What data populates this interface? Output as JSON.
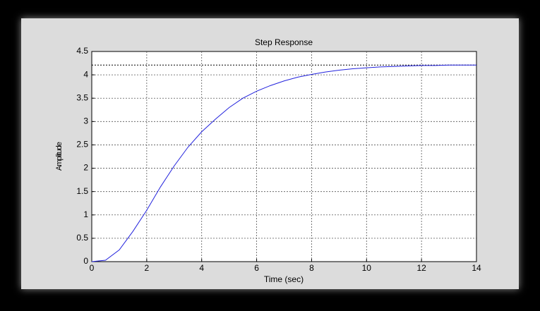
{
  "chart_data": {
    "type": "line",
    "title": "Step Response",
    "x_label": "Time (sec)",
    "y_label": "Amplitude",
    "x": [
      0,
      0.5,
      1,
      1.5,
      2,
      2.5,
      3,
      3.5,
      4,
      4.5,
      5,
      5.5,
      6,
      6.5,
      7,
      7.5,
      8,
      8.5,
      9,
      9.5,
      10,
      10.5,
      11,
      11.5,
      12,
      12.5,
      13,
      13.5,
      14
    ],
    "series": [
      {
        "name": "Step response",
        "color": "#2222dd",
        "values": [
          0,
          0.03,
          0.25,
          0.65,
          1.1,
          1.6,
          2.05,
          2.45,
          2.78,
          3.05,
          3.3,
          3.5,
          3.65,
          3.77,
          3.87,
          3.95,
          4.01,
          4.06,
          4.1,
          4.13,
          4.15,
          4.17,
          4.18,
          4.19,
          4.2,
          4.2,
          4.21,
          4.21,
          4.21
        ]
      }
    ],
    "steady_state": 4.21,
    "xlim": [
      0,
      14
    ],
    "xticks": [
      0,
      2,
      4,
      6,
      8,
      10,
      12,
      14
    ],
    "ylim": [
      0,
      4.5
    ],
    "yticks": [
      0,
      0.5,
      1,
      1.5,
      2,
      2.5,
      3,
      3.5,
      4,
      4.5
    ],
    "grid": true
  }
}
